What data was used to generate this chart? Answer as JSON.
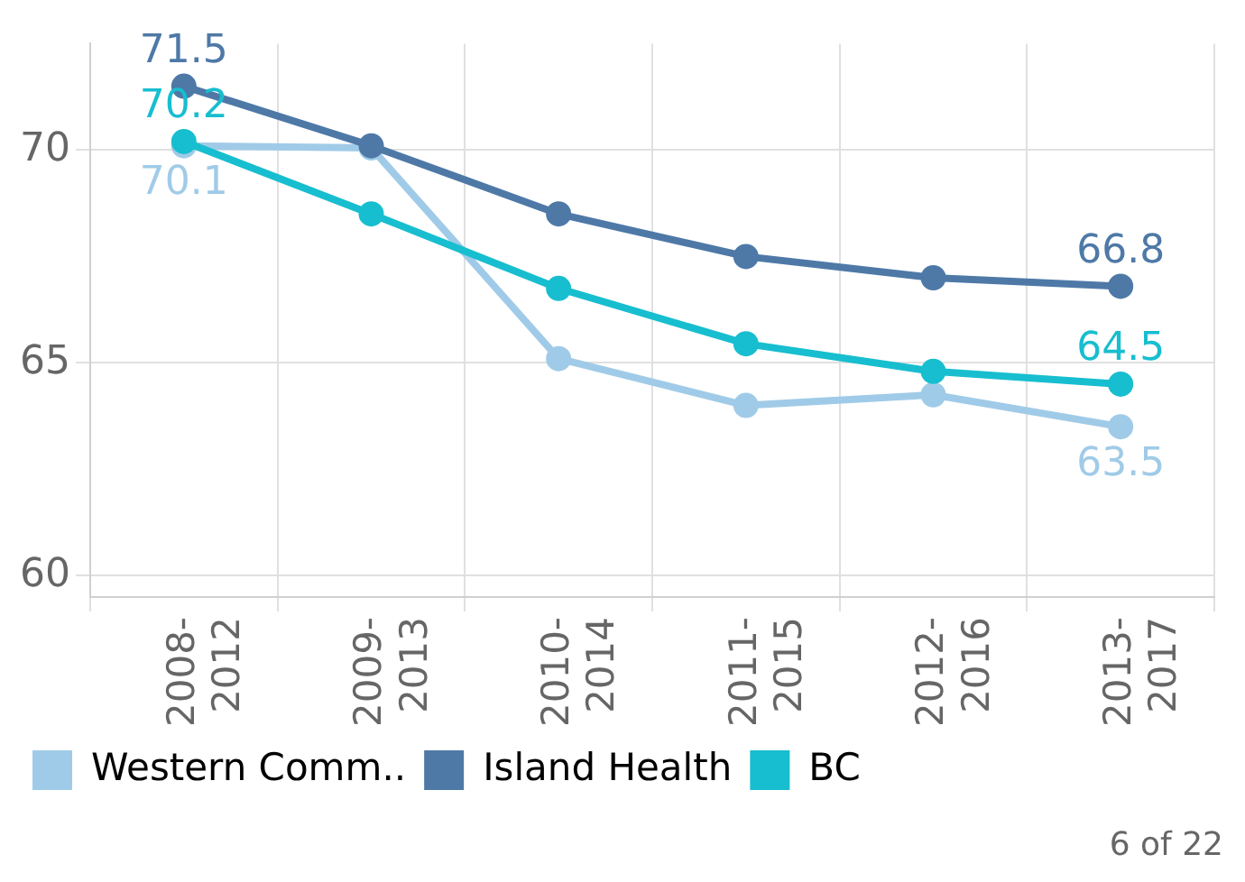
{
  "chart_data": {
    "type": "line",
    "categories": [
      "2008-2012",
      "2009-2013",
      "2010-2014",
      "2011-2015",
      "2012-2016",
      "2013-2017"
    ],
    "series": [
      {
        "name": "Western Comm..",
        "color": "#a0cbe8",
        "values": [
          70.1,
          70.05,
          65.1,
          64.0,
          64.25,
          63.5
        ],
        "value_labels": [
          "70.1",
          null,
          null,
          null,
          null,
          "63.5"
        ]
      },
      {
        "name": "Island Health",
        "color": "#4e79a7",
        "values": [
          71.5,
          70.1,
          68.5,
          67.5,
          67.0,
          66.8
        ],
        "value_labels": [
          "71.5",
          null,
          null,
          null,
          null,
          "66.8"
        ]
      },
      {
        "name": "BC",
        "color": "#17becf",
        "values": [
          70.2,
          68.5,
          66.75,
          65.45,
          64.8,
          64.5
        ],
        "value_labels": [
          "70.2",
          null,
          null,
          null,
          null,
          "64.5"
        ]
      }
    ],
    "ylim": [
      59.5,
      72.5
    ],
    "yticks": [
      60,
      65,
      70
    ],
    "grid": true,
    "legend": "bottom",
    "marker": "circle",
    "line_style": "solid",
    "annotations": [
      "6 of 22"
    ]
  }
}
